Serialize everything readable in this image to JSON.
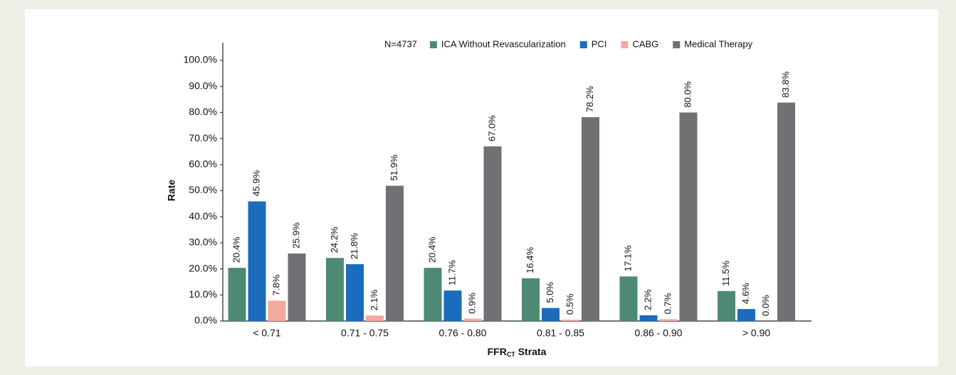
{
  "chart_data": {
    "type": "bar",
    "annotation": "N=4737",
    "y_label": "Rate",
    "x_label": {
      "base": "FFR",
      "subscript": "CT",
      "rest": " Strata"
    },
    "categories": [
      "< 0.71",
      "0.71 - 0.75",
      "0.76 - 0.80",
      "0.81 - 0.85",
      "0.86 - 0.90",
      "> 0.90"
    ],
    "series": [
      {
        "name": "ICA Without Revascularization",
        "color": "#4e8a73",
        "values": [
          20.4,
          24.2,
          20.4,
          16.4,
          17.1,
          11.5
        ],
        "value_labels": [
          "20.4%",
          "24.2%",
          "20.4%",
          "16.4%",
          "17.1%",
          "11.5%"
        ]
      },
      {
        "name": "PCI",
        "color": "#1b6cbd",
        "values": [
          45.9,
          21.8,
          11.7,
          5.0,
          2.2,
          4.6
        ],
        "value_labels": [
          "45.9%",
          "21.8%",
          "11.7%",
          "5.0%",
          "2.2%",
          "4.6%"
        ]
      },
      {
        "name": "CABG",
        "color": "#f3a99c",
        "values": [
          7.8,
          2.1,
          0.9,
          0.5,
          0.7,
          0.0
        ],
        "value_labels": [
          "7.8%",
          "2.1%",
          "0.9%",
          "0.5%",
          "0.7%",
          "0.0%"
        ]
      },
      {
        "name": "Medical Therapy",
        "color": "#707174",
        "values": [
          25.9,
          51.9,
          67.0,
          78.2,
          80.0,
          83.8
        ],
        "value_labels": [
          "25.9%",
          "51.9%",
          "67.0%",
          "78.2%",
          "80.0%",
          "83.8%"
        ]
      }
    ],
    "ylim": [
      0,
      100
    ],
    "yticks": [
      {
        "value": 0,
        "label": "0.0%"
      },
      {
        "value": 10,
        "label": "10.0%"
      },
      {
        "value": 20,
        "label": "20.0%"
      },
      {
        "value": 30,
        "label": "30.0%"
      },
      {
        "value": 40,
        "label": "40.0%"
      },
      {
        "value": 50,
        "label": "50.0%"
      },
      {
        "value": 60,
        "label": "60.0%"
      },
      {
        "value": 70,
        "label": "70.0%"
      },
      {
        "value": 80,
        "label": "80.0%"
      },
      {
        "value": 90,
        "label": "90.0%"
      },
      {
        "value": 100,
        "label": "100.0%"
      }
    ],
    "grid": false
  }
}
